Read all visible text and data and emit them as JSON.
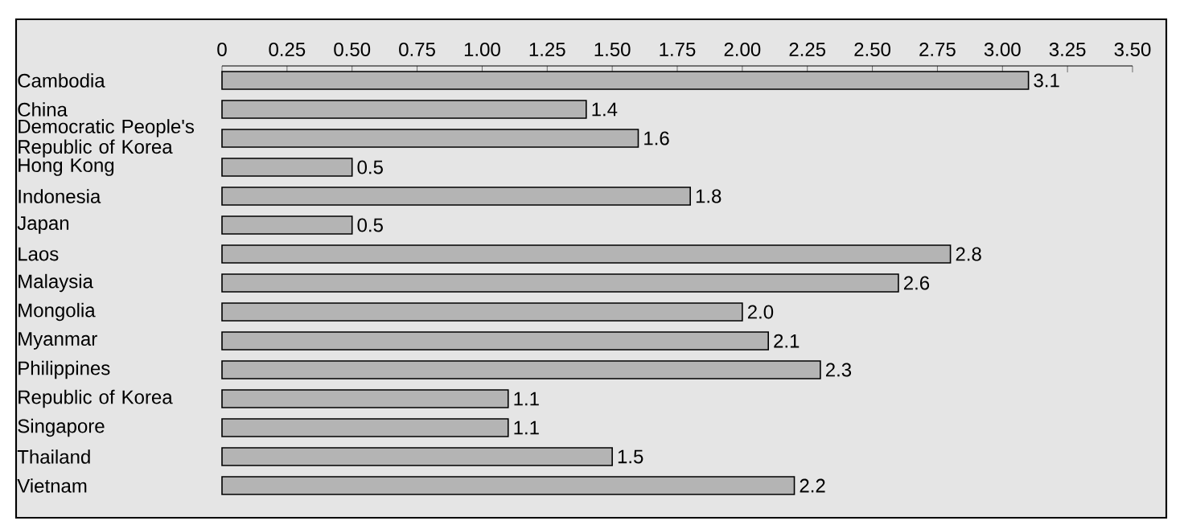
{
  "chart_data": {
    "type": "bar",
    "orientation": "horizontal",
    "categories": [
      "Cambodia",
      "China",
      "Democratic People's Republic of Korea",
      "Hong Kong",
      "Indonesia",
      "Japan",
      "Laos",
      "Malaysia",
      "Mongolia",
      "Myanmar",
      "Philippines",
      "Republic of Korea",
      "Singapore",
      "Thailand",
      "Vietnam"
    ],
    "values": [
      3.1,
      1.4,
      1.6,
      0.5,
      1.8,
      0.5,
      2.8,
      2.6,
      2.0,
      2.1,
      2.3,
      1.1,
      1.1,
      1.5,
      2.2
    ],
    "value_labels": [
      "3.1",
      "1.4",
      "1.6",
      "0.5",
      "1.8",
      "0.5",
      "2.8",
      "2.6",
      "2.0",
      "2.1",
      "2.3",
      "1.1",
      "1.1",
      "1.5",
      "2.2"
    ],
    "color": "#b4b4b4",
    "xlim": [
      0,
      3.5
    ],
    "xticks": [
      0,
      0.25,
      {
        "value": 0.5,
        "label": "0.50"
      },
      0.75,
      {
        "value": 1.0,
        "label": "1.00"
      },
      1.25,
      {
        "value": 1.5,
        "label": "1.50"
      },
      1.75,
      {
        "value": 2.0,
        "label": "2.00"
      },
      2.25,
      {
        "value": 2.5,
        "label": "2.50"
      },
      2.75,
      {
        "value": 3.0,
        "label": "3.00"
      },
      3.25,
      {
        "value": 3.5,
        "label": "3.50"
      }
    ]
  }
}
